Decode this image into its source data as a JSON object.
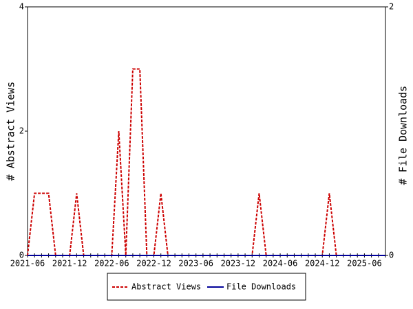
{
  "chart_data": {
    "type": "line",
    "categories": [
      "2021-06",
      null,
      null,
      null,
      null,
      null,
      "2021-12",
      null,
      null,
      null,
      null,
      null,
      "2022-06",
      null,
      null,
      null,
      null,
      null,
      "2022-12",
      null,
      null,
      null,
      null,
      null,
      "2023-06",
      null,
      null,
      null,
      null,
      null,
      "2023-12",
      null,
      null,
      null,
      null,
      null,
      "2024-06",
      null,
      null,
      null,
      null,
      null,
      "2024-12",
      null,
      null,
      null,
      null,
      null,
      "2025-06",
      null,
      null,
      null
    ],
    "ylabel": "# Abstract Views",
    "y2label": "# File Downloads",
    "ylim": [
      0,
      4
    ],
    "yticks": [
      0,
      2,
      4
    ],
    "y2lim": [
      0,
      2
    ],
    "y2ticks": [
      0,
      2
    ],
    "series": [
      {
        "name": "Abstract Views",
        "color": "#cc0000",
        "dashed": true,
        "values": [
          0,
          1,
          1,
          1,
          0,
          0,
          0,
          1,
          0,
          0,
          0,
          0,
          0,
          2,
          0,
          3,
          3,
          0,
          0,
          1,
          0,
          0,
          0,
          0,
          0,
          0,
          0,
          0,
          0,
          0,
          0,
          0,
          0,
          1,
          0,
          0,
          0,
          0,
          0,
          0,
          0,
          0,
          0,
          1,
          0,
          0,
          0,
          0,
          0,
          0,
          0,
          0
        ]
      },
      {
        "name": "File Downloads",
        "color": "#000099",
        "axis": "y2",
        "dashed": false,
        "values": [
          0,
          0,
          0,
          0,
          0,
          0,
          0,
          0,
          0,
          0,
          0,
          0,
          0,
          0,
          0,
          0,
          0,
          0,
          0,
          0,
          0,
          0,
          0,
          0,
          0,
          0,
          0,
          0,
          0,
          0,
          0,
          0,
          0,
          0,
          0,
          0,
          0,
          0,
          0,
          0,
          0,
          0,
          0,
          0,
          0,
          0,
          0,
          0,
          0,
          0,
          0,
          0
        ]
      }
    ],
    "legend": "bottom"
  }
}
